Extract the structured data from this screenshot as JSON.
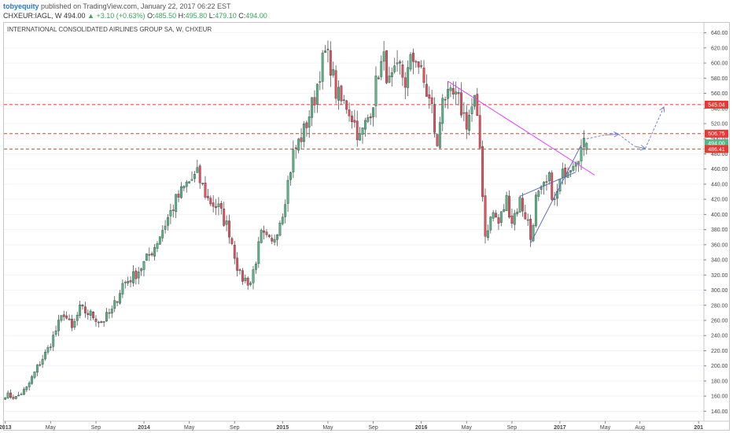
{
  "header": {
    "author": "tobyequity",
    "published_text": "published on TradingView.com, January 22, 2017 06:22 EST",
    "symbol": "CHXEUR:IAGL, W",
    "last": "494.00",
    "change_arrow": "▲",
    "change": "+3.10 (+0.63%)",
    "o_label": "O:",
    "o_value": "485.50",
    "h_label": "H:",
    "h_value": "495.80",
    "l_label": "L:",
    "l_value": "479.10",
    "c_label": "C:",
    "c_value": "494.00"
  },
  "chart_title": "INTERNATIONAL CONSOLIDATED AIRLINES GROUP SA, W, CHXEUR",
  "chart_data": {
    "type": "candlestick",
    "title": "INTERNATIONAL CONSOLIDATED AIRLINES GROUP SA, W, CHXEUR",
    "y_ticks": [
      140,
      160,
      180,
      200,
      220,
      240,
      260,
      280,
      300,
      320,
      340,
      360,
      380,
      400,
      420,
      440,
      460,
      480,
      500,
      520,
      540,
      560,
      580,
      600,
      620,
      640
    ],
    "ylim": [
      130,
      650
    ],
    "x_ticks": [
      "2013",
      "May",
      "Sep",
      "2014",
      "May",
      "Sep",
      "2015",
      "May",
      "Sep",
      "2016",
      "May",
      "Sep",
      "2017",
      "May",
      "Aug",
      "201"
    ],
    "x_tick_weeks": [
      0,
      17,
      34,
      52,
      69,
      86,
      104,
      121,
      138,
      156,
      173,
      190,
      208,
      225,
      238,
      260
    ],
    "xlim": [
      -0.5,
      262
    ],
    "colors": {
      "up": "#53b987",
      "down": "#eb4d5c",
      "wick": "#555555",
      "hline": "#e53935",
      "trend": "#e040fb",
      "wedge": "#5c6bc0",
      "arrow": "#7986cb"
    },
    "horizontal_levels": [
      545.04,
      506.75,
      486.41
    ],
    "price_labels": [
      {
        "value": 545.04,
        "text": "545.04",
        "color": "#e53935"
      },
      {
        "value": 506.75,
        "text": "506.75",
        "color": "#e53935"
      },
      {
        "value": 494.0,
        "text": "494.00",
        "color": "#53b987"
      },
      {
        "value": 486.41,
        "text": "486.41",
        "color": "#e53935"
      }
    ],
    "anchors": [
      [
        0,
        162
      ],
      [
        4,
        158
      ],
      [
        8,
        170
      ],
      [
        12,
        198
      ],
      [
        16,
        222
      ],
      [
        20,
        255
      ],
      [
        22,
        270
      ],
      [
        25,
        248
      ],
      [
        28,
        275
      ],
      [
        32,
        268
      ],
      [
        36,
        258
      ],
      [
        40,
        272
      ],
      [
        44,
        308
      ],
      [
        48,
        318
      ],
      [
        52,
        335
      ],
      [
        56,
        358
      ],
      [
        60,
        388
      ],
      [
        64,
        418
      ],
      [
        68,
        440
      ],
      [
        72,
        452
      ],
      [
        76,
        420
      ],
      [
        80,
        408
      ],
      [
        84,
        378
      ],
      [
        88,
        318
      ],
      [
        92,
        310
      ],
      [
        96,
        372
      ],
      [
        100,
        360
      ],
      [
        104,
        405
      ],
      [
        108,
        480
      ],
      [
        112,
        510
      ],
      [
        116,
        555
      ],
      [
        118,
        590
      ],
      [
        120,
        612
      ],
      [
        122,
        598
      ],
      [
        124,
        562
      ],
      [
        126,
        548
      ],
      [
        128,
        545
      ],
      [
        130,
        530
      ],
      [
        133,
        500
      ],
      [
        136,
        528
      ],
      [
        138,
        552
      ],
      [
        140,
        590
      ],
      [
        142,
        603
      ],
      [
        144,
        572
      ],
      [
        146,
        582
      ],
      [
        148,
        592
      ],
      [
        150,
        575
      ],
      [
        152,
        600
      ],
      [
        154,
        610
      ],
      [
        156,
        585
      ],
      [
        158,
        560
      ],
      [
        160,
        540
      ],
      [
        162,
        485
      ],
      [
        164,
        562
      ],
      [
        166,
        552
      ],
      [
        168,
        555
      ],
      [
        170,
        548
      ],
      [
        173,
        522
      ],
      [
        176,
        550
      ],
      [
        178,
        488
      ],
      [
        180,
        372
      ],
      [
        181,
        385
      ],
      [
        183,
        402
      ],
      [
        185,
        388
      ],
      [
        188,
        420
      ],
      [
        190,
        392
      ],
      [
        193,
        418
      ],
      [
        196,
        390
      ],
      [
        197,
        368
      ],
      [
        199,
        420
      ],
      [
        201,
        428
      ],
      [
        204,
        445
      ],
      [
        206,
        415
      ],
      [
        208,
        442
      ],
      [
        210,
        460
      ],
      [
        212,
        468
      ],
      [
        214,
        478
      ],
      [
        216,
        486
      ],
      [
        218,
        494
      ]
    ],
    "trendlines": [
      {
        "name": "descending",
        "points": [
          [
            166,
            576
          ],
          [
            221,
            452
          ]
        ]
      },
      {
        "name": "wedge-upper",
        "points": [
          [
            193,
            424
          ],
          [
            214,
            456
          ]
        ]
      },
      {
        "name": "wedge-lower",
        "points": [
          [
            197,
            362
          ],
          [
            216,
            492
          ]
        ]
      }
    ],
    "projection": [
      [
        218,
        500
      ],
      [
        225,
        505
      ],
      [
        230,
        506
      ],
      [
        236,
        490
      ],
      [
        240,
        487
      ],
      [
        247,
        542
      ]
    ]
  }
}
